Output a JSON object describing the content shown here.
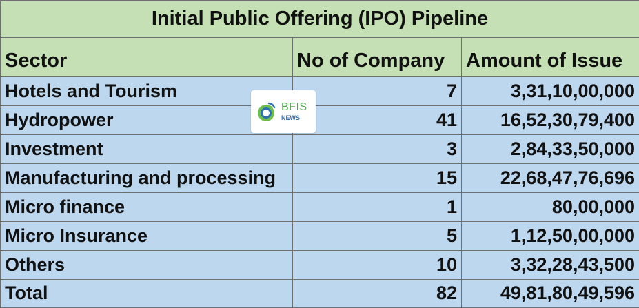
{
  "table": {
    "title": "Initial Public Offering (IPO) Pipeline",
    "headers": [
      "Sector",
      "No of Company",
      "Amount of Issue"
    ],
    "rows": [
      {
        "sector": "Hotels and Tourism",
        "companies": "7",
        "amount": "3,31,10,00,000"
      },
      {
        "sector": "Hydropower",
        "companies": "41",
        "amount": "16,52,30,79,400"
      },
      {
        "sector": "Investment",
        "companies": "3",
        "amount": "2,84,33,50,000"
      },
      {
        "sector": "Manufacturing and processing",
        "companies": "15",
        "amount": "22,68,47,76,696"
      },
      {
        "sector": "Micro finance",
        "companies": "1",
        "amount": "80,00,000"
      },
      {
        "sector": "Micro Insurance",
        "companies": "5",
        "amount": "1,12,50,00,000"
      },
      {
        "sector": "Others",
        "companies": "10",
        "amount": "3,32,28,43,500"
      }
    ],
    "total": {
      "label": "Total",
      "companies": "82",
      "amount": "49,81,80,49,596"
    }
  },
  "watermark": {
    "brand": "BFIS",
    "sub": "NEWS",
    "brand_color": "#4aa84a",
    "sub_color": "#2c6fb7",
    "icon": "bfis-logo-icon"
  },
  "colors": {
    "header_fill": "#c5e0b4",
    "body_fill": "#bdd7ee",
    "grid_line": "#6f6f6f"
  }
}
